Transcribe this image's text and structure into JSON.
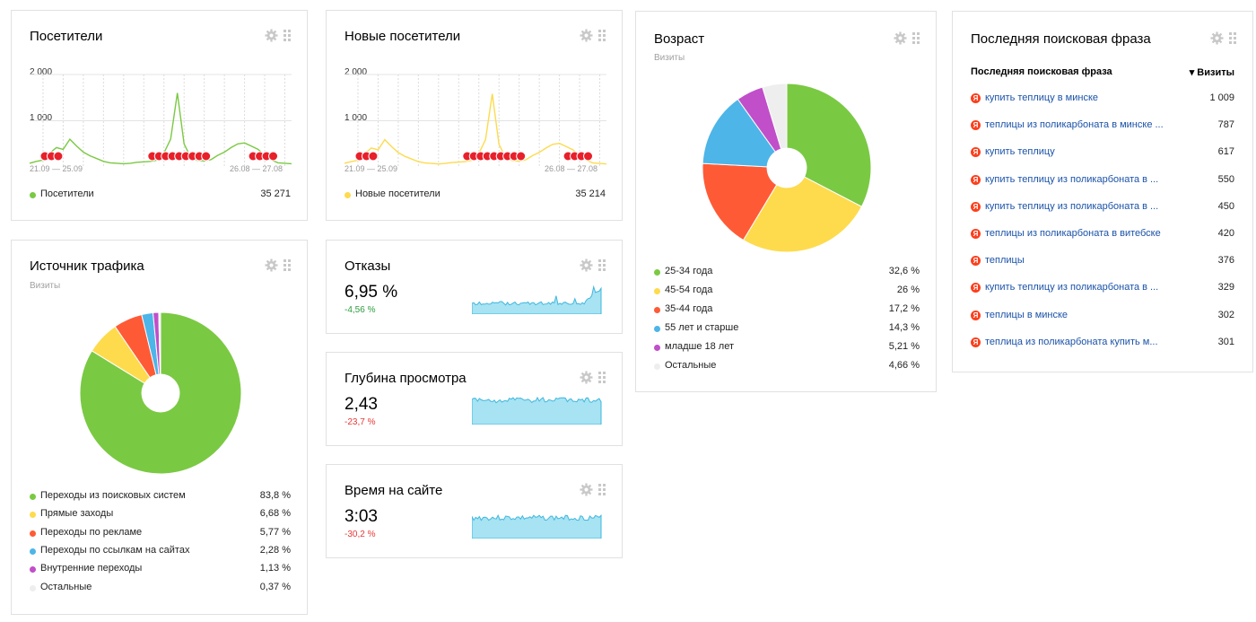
{
  "colors": {
    "green": "#7ac943",
    "yellow": "#fddb4d",
    "red": "#ff5a36",
    "blue": "#4db5e8",
    "purple": "#c04fc9",
    "gray": "#eeeeee",
    "spark": "#5fc8e8",
    "delta_green": "#2e9e3e",
    "delta_red": "#e53935",
    "link": "#1a52a8"
  },
  "visitors": {
    "title": "Посетители",
    "y_ticks": [
      "2 000",
      "1 000"
    ],
    "dates": [
      "21.09 — 25.09",
      "26.08 — 27.08"
    ],
    "legend_label": "Посетители",
    "legend_value": "35 271"
  },
  "new_visitors": {
    "title": "Новые посетители",
    "y_ticks": [
      "2 000",
      "1 000"
    ],
    "dates": [
      "21.09 — 25.09",
      "26.08 — 27.08"
    ],
    "legend_label": "Новые посетители",
    "legend_value": "35 214"
  },
  "age": {
    "title": "Возраст",
    "subtitle": "Визиты",
    "items": [
      {
        "label": "25-34 года",
        "value": "32,6 %",
        "color": "#7ac943"
      },
      {
        "label": "45-54 года",
        "value": "26 %",
        "color": "#fddb4d"
      },
      {
        "label": "35-44 года",
        "value": "17,2 %",
        "color": "#ff5a36"
      },
      {
        "label": "55 лет и старше",
        "value": "14,3 %",
        "color": "#4db5e8"
      },
      {
        "label": "младше 18 лет",
        "value": "5,21 %",
        "color": "#c04fc9"
      },
      {
        "label": "Остальные",
        "value": "4,66 %",
        "color": "#eeeeee"
      }
    ]
  },
  "search_phrase": {
    "title": "Последняя поисковая фраза",
    "col_phrase": "Последняя поисковая фраза",
    "col_visits": "▾ Визиты",
    "yandex_letter": "Я",
    "rows": [
      {
        "phrase": "купить теплицу в минске",
        "count": "1 009"
      },
      {
        "phrase": "теплицы из поликарбоната в минске ...",
        "count": "787"
      },
      {
        "phrase": "купить теплицу",
        "count": "617"
      },
      {
        "phrase": "купить теплицу из поликарбоната в ...",
        "count": "550"
      },
      {
        "phrase": "купить теплицу из поликарбоната в ...",
        "count": "450"
      },
      {
        "phrase": "теплицы из поликарбоната в витебске",
        "count": "420"
      },
      {
        "phrase": "теплицы",
        "count": "376"
      },
      {
        "phrase": "купить теплицу из поликарбоната в ...",
        "count": "329"
      },
      {
        "phrase": "теплицы в минске",
        "count": "302"
      },
      {
        "phrase": "теплица из поликарбоната купить м...",
        "count": "301"
      }
    ]
  },
  "traffic": {
    "title": "Источник трафика",
    "subtitle": "Визиты",
    "items": [
      {
        "label": "Переходы из поисковых систем",
        "value": "83,8 %",
        "color": "#7ac943"
      },
      {
        "label": "Прямые заходы",
        "value": "6,68 %",
        "color": "#fddb4d"
      },
      {
        "label": "Переходы по рекламе",
        "value": "5,77 %",
        "color": "#ff5a36"
      },
      {
        "label": "Переходы по ссылкам на сайтах",
        "value": "2,28 %",
        "color": "#4db5e8"
      },
      {
        "label": "Внутренние переходы",
        "value": "1,13 %",
        "color": "#c04fc9"
      },
      {
        "label": "Остальные",
        "value": "0,37 %",
        "color": "#eeeeee"
      }
    ]
  },
  "bounces": {
    "title": "Отказы",
    "value": "6,95 %",
    "delta": "-4,56 %"
  },
  "depth": {
    "title": "Глубина просмотра",
    "value": "2,43",
    "delta": "-23,7 %"
  },
  "time_on_site": {
    "title": "Время на сайте",
    "value": "3:03",
    "delta": "-30,2 %"
  },
  "chart_data": [
    {
      "type": "pie",
      "title": "Возраст",
      "subtitle": "Визиты",
      "categories": [
        "25-34 года",
        "45-54 года",
        "35-44 года",
        "55 лет и старше",
        "младше 18 лет",
        "Остальные"
      ],
      "values": [
        32.6,
        26,
        17.2,
        14.3,
        5.21,
        4.66
      ]
    },
    {
      "type": "pie",
      "title": "Источник трафика",
      "subtitle": "Визиты",
      "categories": [
        "Переходы из поисковых систем",
        "Прямые заходы",
        "Переходы по рекламе",
        "Переходы по ссылкам на сайтах",
        "Внутренние переходы",
        "Остальные"
      ],
      "values": [
        83.8,
        6.68,
        5.77,
        2.28,
        1.13,
        0.37
      ]
    },
    {
      "type": "line",
      "title": "Посетители",
      "ylim": [
        0,
        2000
      ],
      "series": [
        {
          "name": "Посетители",
          "values": [
            80,
            120,
            150,
            300,
            420,
            380,
            600,
            450,
            320,
            240,
            180,
            120,
            90,
            80,
            70,
            80,
            100,
            110,
            120,
            150,
            300,
            600,
            1600,
            500,
            200,
            140,
            130,
            160,
            250,
            320,
            420,
            500,
            520,
            450,
            380,
            250,
            150,
            90,
            80,
            70
          ]
        }
      ]
    },
    {
      "type": "line",
      "title": "Новые посетители",
      "ylim": [
        0,
        2000
      ],
      "series": [
        {
          "name": "Новые посетители",
          "values": [
            80,
            115,
            145,
            290,
            410,
            370,
            590,
            440,
            310,
            230,
            170,
            115,
            85,
            75,
            65,
            75,
            95,
            105,
            115,
            145,
            290,
            590,
            1580,
            490,
            195,
            135,
            125,
            155,
            245,
            315,
            410,
            490,
            510,
            440,
            370,
            245,
            145,
            85,
            75,
            65
          ]
        }
      ]
    }
  ]
}
